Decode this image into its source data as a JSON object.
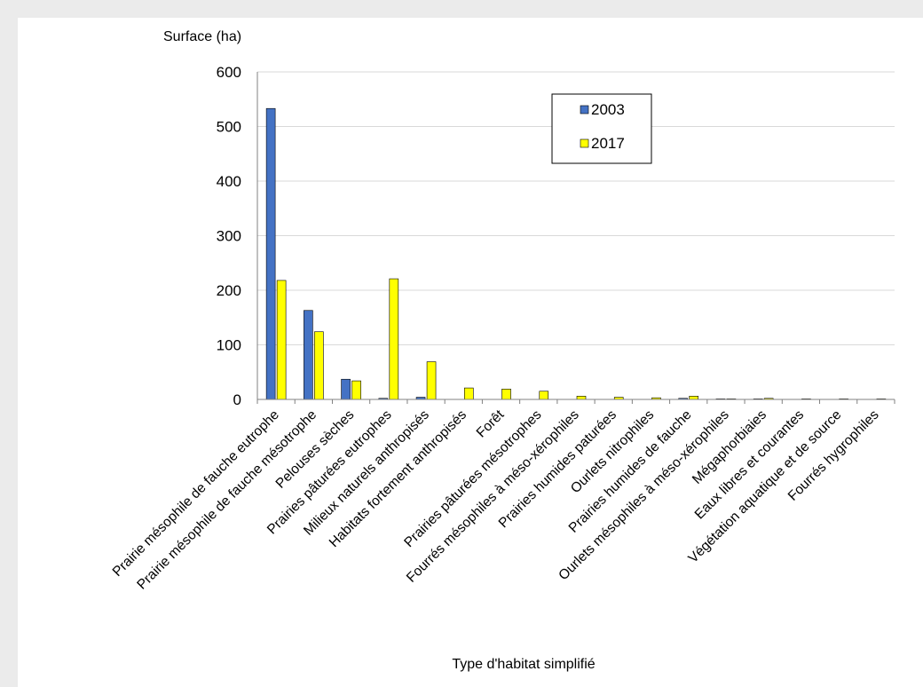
{
  "chart_data": {
    "type": "bar",
    "ylabel": "Surface (ha)",
    "xlabel": "Type d'habitat simplifié",
    "ylim": [
      0,
      600
    ],
    "yticks": [
      0,
      100,
      200,
      300,
      400,
      500,
      600
    ],
    "grid": true,
    "legend_position": "top-right",
    "categories": [
      "Prairie mésophile de fauche eutrophe",
      "Prairie mésophile de fauche mésotrophe",
      "Pelouses sèches",
      "Prairies pâturées eutrophes",
      "Milieux naturels anthropisés",
      "Habitats fortement anthropisés",
      "Forêt",
      "Prairies pâturées mésotrophes",
      "Fourrés mésophiles à méso-xérophiles",
      "Prairies humides paturées",
      "Ourlets nitrophiles",
      "Prairies humides de fauche",
      "Ourlets mésophiles à méso-xérophiles",
      "Mégaphorbiaies",
      "Eaux libres et courantes",
      "Végétation aquatique et de source",
      "Fourrés hygrophiles"
    ],
    "series": [
      {
        "name": "2003",
        "color": "#4472c4",
        "values": [
          533,
          163,
          37,
          2,
          4,
          0,
          0,
          0,
          0,
          0,
          0,
          2,
          1,
          1,
          0,
          0,
          0
        ]
      },
      {
        "name": "2017",
        "color": "#ffff00",
        "values": [
          218,
          124,
          34,
          221,
          69,
          21,
          19,
          15,
          6,
          4,
          3,
          6,
          1,
          2,
          1,
          1,
          1
        ]
      }
    ]
  }
}
